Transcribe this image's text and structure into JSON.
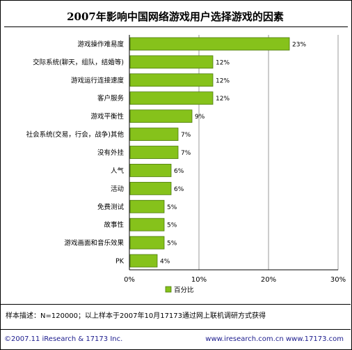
{
  "chart_data": {
    "type": "bar",
    "orientation": "horizontal",
    "title": "2007年影响中国网络游戏用户选择游戏的因素",
    "categories": [
      "游戏操作难易度",
      "交际系统(聊天，组队，结婚等)",
      "游戏运行连接速度",
      "客户服务",
      "游戏平衡性",
      "社会系统(交易，行会，战争)其他",
      "没有外挂",
      "人气",
      "活动",
      "免费测试",
      "故事性",
      "游戏画面和音乐效果",
      "PK"
    ],
    "series": [
      {
        "name": "百分比",
        "values": [
          23,
          12,
          12,
          12,
          9,
          7,
          7,
          6,
          6,
          5,
          5,
          5,
          4
        ]
      }
    ],
    "value_labels": [
      "23%",
      "12%",
      "12%",
      "12%",
      "9%",
      "7%",
      "7%",
      "6%",
      "6%",
      "5%",
      "5%",
      "5%",
      "4%"
    ],
    "xlim": [
      0,
      30
    ],
    "xticks": [
      0,
      10,
      20,
      30
    ],
    "xtick_labels": [
      "0%",
      "10%",
      "20%",
      "30%"
    ],
    "grid": true,
    "legend_position": "bottom",
    "bar_color": "#86c21b"
  },
  "footer": {
    "note": "样本描述：N=120000；以上样本于2007年10月17173通过网上联机调研方式获得",
    "copyright": "©2007.11 iResearch & 17173 Inc.",
    "websites": "www.iresearch.com.cn   www.17173.com"
  }
}
